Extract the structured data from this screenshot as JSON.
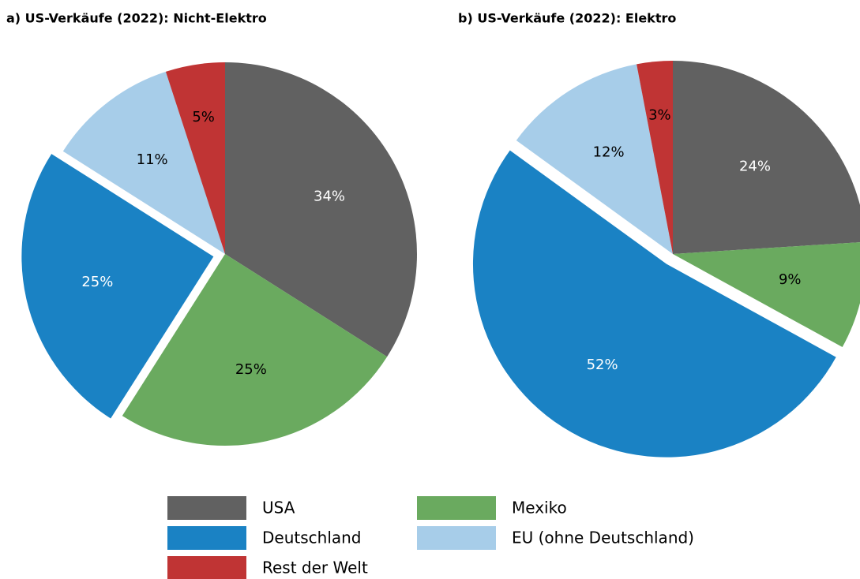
{
  "chart_data": [
    {
      "type": "pie",
      "title": "a) US-Verkäufe (2022): Nicht-Elektro",
      "categories": [
        "USA",
        "Mexiko",
        "Deutschland",
        "EU (ohne Deutschland)",
        "Rest der Welt"
      ],
      "values": [
        34,
        25,
        25,
        11,
        5
      ],
      "value_labels": [
        "34%",
        "25%",
        "25%",
        "11%",
        "5%"
      ],
      "colors": [
        "#616161",
        "#6aaa5f",
        "#1a82c4",
        "#a7cde9",
        "#c03434"
      ],
      "explode": [
        false,
        false,
        true,
        false,
        false
      ]
    },
    {
      "type": "pie",
      "title": "b) US-Verkäufe (2022): Elektro",
      "categories": [
        "USA",
        "Mexiko",
        "Deutschland",
        "EU (ohne Deutschland)",
        "Rest der Welt"
      ],
      "values": [
        24,
        9,
        52,
        12,
        3
      ],
      "value_labels": [
        "24%",
        "9%",
        "52%",
        "12%",
        "3%"
      ],
      "colors": [
        "#616161",
        "#6aaa5f",
        "#1a82c4",
        "#a7cde9",
        "#c03434"
      ],
      "explode": [
        false,
        false,
        true,
        false,
        false
      ]
    }
  ]
}
